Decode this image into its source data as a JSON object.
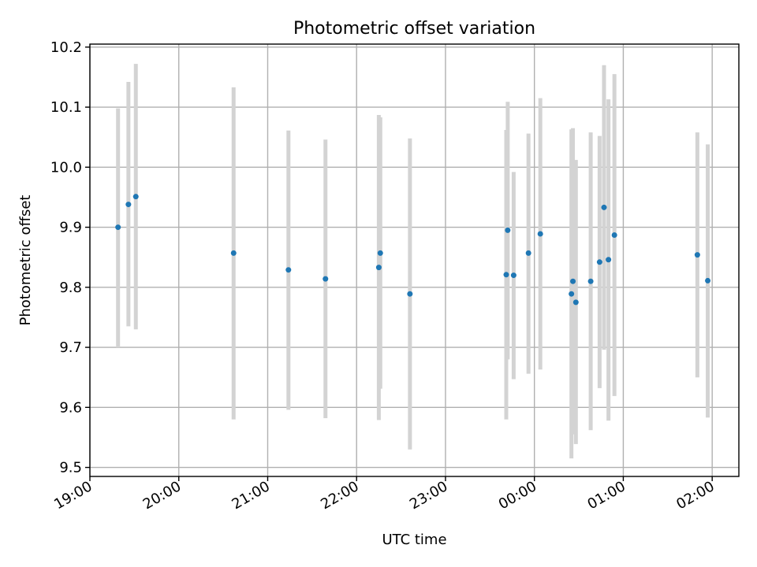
{
  "chart_data": {
    "type": "scatter",
    "title": "Photometric offset variation",
    "xlabel": "UTC time",
    "ylabel": "Photometric offset",
    "ylim": [
      9.485,
      10.205
    ],
    "xlim": [
      "19:00",
      "02:18"
    ],
    "xticks": [
      "19:00",
      "20:00",
      "21:00",
      "22:00",
      "23:00",
      "00:00",
      "01:00",
      "02:00"
    ],
    "yticks": [
      "9.5",
      "9.6",
      "9.7",
      "9.8",
      "9.9",
      "10.0",
      "10.1",
      "10.2"
    ],
    "grid": true,
    "colors": {
      "points": "#1f77b4",
      "error_bars": "#d3d3d3"
    },
    "points": [
      {
        "x": "19:19",
        "y": 9.9,
        "y_low": 9.7,
        "y_high": 10.098
      },
      {
        "x": "19:26",
        "y": 9.938,
        "y_low": 9.735,
        "y_high": 10.142
      },
      {
        "x": "19:31",
        "y": 9.951,
        "y_low": 9.73,
        "y_high": 10.172
      },
      {
        "x": "20:37",
        "y": 9.857,
        "y_low": 9.58,
        "y_high": 10.133
      },
      {
        "x": "21:14",
        "y": 9.829,
        "y_low": 9.596,
        "y_high": 10.061
      },
      {
        "x": "21:39",
        "y": 9.814,
        "y_low": 9.582,
        "y_high": 10.046
      },
      {
        "x": "22:15",
        "y": 9.833,
        "y_low": 9.579,
        "y_high": 10.087
      },
      {
        "x": "22:16",
        "y": 9.857,
        "y_low": 9.631,
        "y_high": 10.083
      },
      {
        "x": "22:36",
        "y": 9.789,
        "y_low": 9.53,
        "y_high": 10.048
      },
      {
        "x": "23:41",
        "y": 9.821,
        "y_low": 9.58,
        "y_high": 10.062
      },
      {
        "x": "23:42",
        "y": 9.895,
        "y_low": 9.68,
        "y_high": 10.109
      },
      {
        "x": "23:46",
        "y": 9.82,
        "y_low": 9.647,
        "y_high": 9.992
      },
      {
        "x": "23:56",
        "y": 9.857,
        "y_low": 9.656,
        "y_high": 10.056
      },
      {
        "x": "00:04",
        "y": 9.889,
        "y_low": 9.663,
        "y_high": 10.115
      },
      {
        "x": "00:25",
        "y": 9.789,
        "y_low": 9.515,
        "y_high": 10.063
      },
      {
        "x": "00:26",
        "y": 9.81,
        "y_low": 9.555,
        "y_high": 10.065
      },
      {
        "x": "00:28",
        "y": 9.775,
        "y_low": 9.539,
        "y_high": 10.012
      },
      {
        "x": "00:38",
        "y": 9.81,
        "y_low": 9.562,
        "y_high": 10.058
      },
      {
        "x": "00:44",
        "y": 9.842,
        "y_low": 9.632,
        "y_high": 10.052
      },
      {
        "x": "00:47",
        "y": 9.933,
        "y_low": 9.696,
        "y_high": 10.17
      },
      {
        "x": "00:50",
        "y": 9.846,
        "y_low": 9.578,
        "y_high": 10.113
      },
      {
        "x": "00:54",
        "y": 9.887,
        "y_low": 9.619,
        "y_high": 10.155
      },
      {
        "x": "01:50",
        "y": 9.854,
        "y_low": 9.65,
        "y_high": 10.058
      },
      {
        "x": "01:57",
        "y": 9.811,
        "y_low": 9.583,
        "y_high": 10.038
      }
    ]
  }
}
